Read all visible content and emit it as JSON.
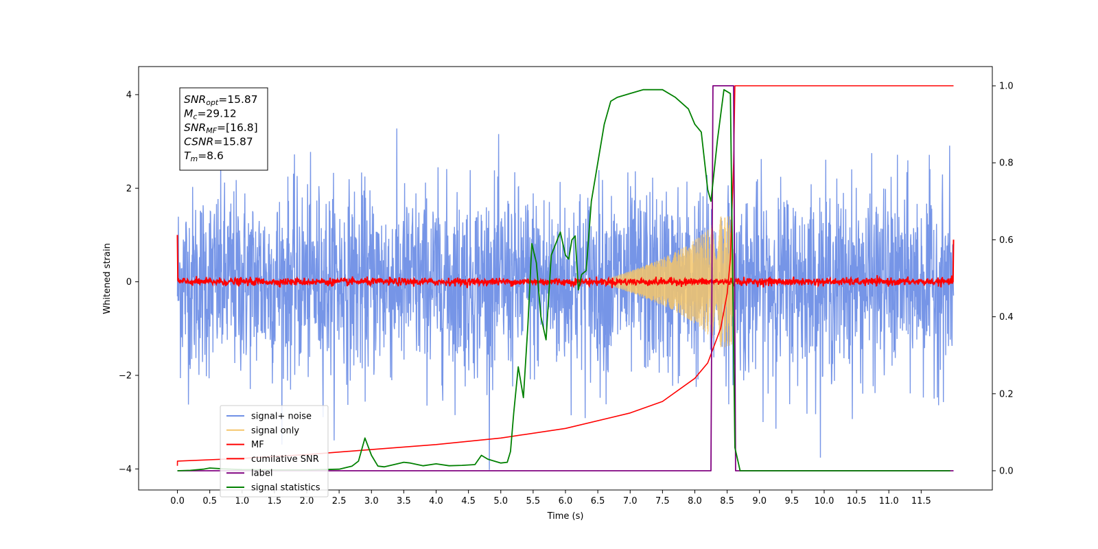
{
  "chart_data": {
    "type": "line",
    "title": "",
    "xlabel": "Time (s)",
    "ylabel": "Whitened strain",
    "xlim": [
      -0.6,
      12.6
    ],
    "ylim": [
      -4.45,
      4.6
    ],
    "y2lim": [
      -0.05,
      1.05
    ],
    "xticks": [
      "0.0",
      "0.5",
      "1.0",
      "1.5",
      "2.0",
      "2.5",
      "3.0",
      "3.5",
      "4.0",
      "4.5",
      "5.0",
      "5.5",
      "6.0",
      "6.5",
      "7.0",
      "7.5",
      "8.0",
      "8.5",
      "9.0",
      "9.5",
      "10.0",
      "10.5",
      "11.0",
      "11.5"
    ],
    "yticks": [
      "4",
      "2",
      "0",
      "−2",
      "−4"
    ],
    "y2ticks": [
      "1.0",
      "0.8",
      "0.6",
      "0.4",
      "0.2",
      "0.0"
    ],
    "grid": false,
    "legend_position": "lower-left",
    "info_box": {
      "lines": [
        {
          "sym": "SNR",
          "sub": "opt",
          "val": "=15.87"
        },
        {
          "sym": "M",
          "sub": "c",
          "val": "=29.12"
        },
        {
          "sym": "SNR",
          "sub": "MF",
          "val": "=[16.8]"
        },
        {
          "sym": "CSNR",
          "sub": "",
          "val": "=15.87"
        },
        {
          "sym": "T",
          "sub": "m",
          "val": "=8.6"
        }
      ]
    },
    "series": [
      {
        "name": "signal+ noise",
        "color": "#6f8fe6",
        "axis": "left",
        "description_values": {
          "noise_std": 1.0,
          "x_range": [
            0,
            12
          ]
        }
      },
      {
        "name": "signal only",
        "color": "#f5c56a",
        "axis": "left",
        "description_values": {
          "chirp_peak_time": 8.55,
          "peak_amplitude": 1.4
        }
      },
      {
        "name": "MF",
        "color": "#ff0000",
        "axis": "left",
        "description_values": {
          "level": 0.0
        }
      },
      {
        "name": "cumilative SNR",
        "color": "#ff0000",
        "axis": "right",
        "x": [
          0,
          0.001,
          1,
          2,
          3,
          4,
          5,
          6,
          7,
          7.5,
          8,
          8.2,
          8.4,
          8.5,
          8.55,
          8.6,
          8.62,
          12
        ],
        "y": [
          0.013,
          0.025,
          0.032,
          0.042,
          0.055,
          0.068,
          0.085,
          0.11,
          0.15,
          0.18,
          0.24,
          0.28,
          0.37,
          0.46,
          0.55,
          0.8,
          1.0,
          1.0
        ]
      },
      {
        "name": "label",
        "color": "#800080",
        "axis": "right",
        "x": [
          0,
          8.25,
          8.28,
          8.6,
          8.63,
          12
        ],
        "y": [
          0.0,
          0.0,
          1.0,
          1.0,
          0.0,
          0.0
        ]
      },
      {
        "name": "signal statistics",
        "color": "#008000",
        "axis": "right",
        "x": [
          0,
          0.2,
          0.4,
          0.5,
          0.7,
          1.0,
          1.5,
          2.0,
          2.5,
          2.7,
          2.8,
          2.9,
          3.0,
          3.1,
          3.2,
          3.4,
          3.5,
          3.6,
          3.8,
          4.0,
          4.2,
          4.4,
          4.6,
          4.7,
          4.8,
          5.0,
          5.1,
          5.15,
          5.2,
          5.27,
          5.35,
          5.42,
          5.48,
          5.55,
          5.62,
          5.7,
          5.78,
          5.85,
          5.92,
          6.0,
          6.05,
          6.1,
          6.15,
          6.2,
          6.25,
          6.32,
          6.4,
          6.5,
          6.6,
          6.7,
          6.8,
          7.0,
          7.2,
          7.3,
          7.5,
          7.7,
          7.9,
          8.0,
          8.1,
          8.2,
          8.25,
          8.35,
          8.45,
          8.55,
          8.62,
          8.7,
          9.0,
          11.0,
          11.95
        ],
        "y": [
          0.0,
          0.001,
          0.004,
          0.007,
          0.005,
          0.003,
          0.002,
          0.002,
          0.004,
          0.012,
          0.025,
          0.085,
          0.04,
          0.012,
          0.01,
          0.018,
          0.022,
          0.02,
          0.013,
          0.018,
          0.013,
          0.014,
          0.016,
          0.04,
          0.03,
          0.02,
          0.022,
          0.05,
          0.15,
          0.27,
          0.19,
          0.38,
          0.59,
          0.54,
          0.4,
          0.34,
          0.56,
          0.59,
          0.62,
          0.56,
          0.55,
          0.6,
          0.61,
          0.47,
          0.51,
          0.52,
          0.7,
          0.8,
          0.9,
          0.96,
          0.97,
          0.98,
          0.99,
          0.99,
          0.99,
          0.97,
          0.94,
          0.9,
          0.88,
          0.73,
          0.7,
          0.86,
          0.99,
          0.98,
          0.06,
          0.0,
          0.0,
          0.0,
          0.0
        ]
      }
    ]
  }
}
